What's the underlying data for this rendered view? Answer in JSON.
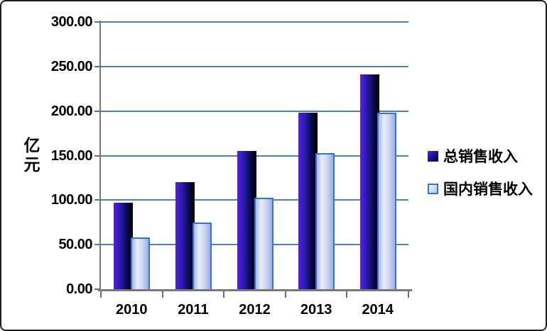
{
  "figure": {
    "background": "#ffffff",
    "border_color": "#1c1c1c"
  },
  "chart_data": {
    "type": "bar",
    "title": "",
    "xlabel": "",
    "ylabel": "亿元",
    "ylabel_lines": "亿\n元",
    "categories": [
      "2010",
      "2011",
      "2012",
      "2013",
      "2014"
    ],
    "series": [
      {
        "name": "总销售收入",
        "values": [
          97,
          120,
          155,
          198,
          241
        ],
        "style": "dark"
      },
      {
        "name": "国内销售收入",
        "values": [
          58,
          75,
          103,
          153,
          198
        ],
        "style": "light"
      }
    ],
    "ylim": [
      0,
      300
    ],
    "ytick_step": 50,
    "ytick_labels": [
      "0.00",
      "50.00",
      "100.00",
      "150.00",
      "200.00",
      "250.00",
      "300.00"
    ],
    "grid": true,
    "legend_position": "right"
  },
  "colors": {
    "gridline": "#4e80bc",
    "axis": "#7a7a7a",
    "dark_bar_gradient": [
      "#5b1fd6",
      "#2d1cb8",
      "#0b0a58",
      "#000000"
    ],
    "light_bar_fill": [
      "#aab6e6",
      "#e9edfa",
      "#ccd4f0",
      "#9fadde"
    ],
    "light_bar_border": "#2e75d4",
    "text": "#000000"
  }
}
